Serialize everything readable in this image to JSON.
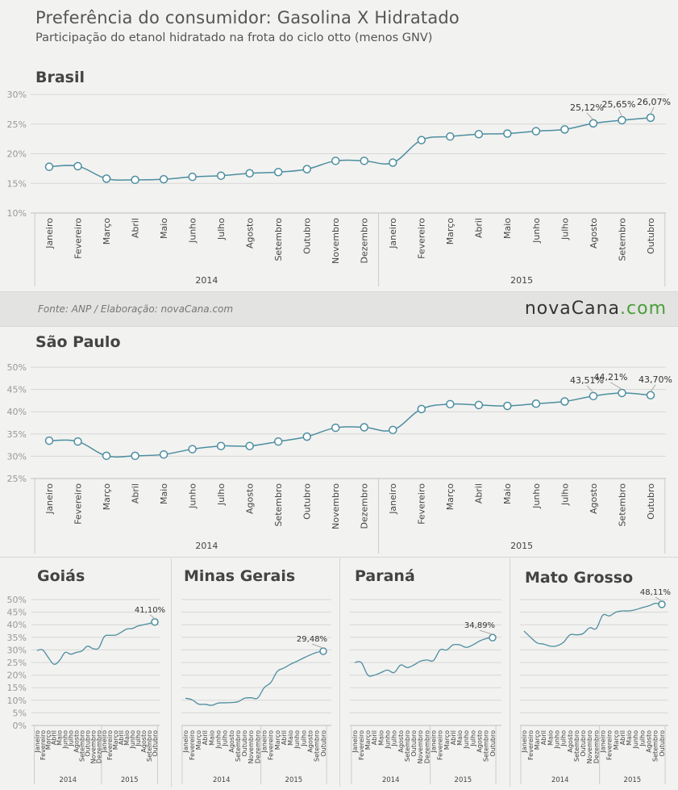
{
  "header": {
    "title": "Preferência do consumidor: Gasolina X Hidratado",
    "subtitle": "Participação do etanol hidratado na frota do ciclo otto (menos GNV)"
  },
  "footer": {
    "source": "Fonte:  ANP / Elaboração:  novaCana.com",
    "logo_part1": "novaCana",
    "logo_part2": ".com"
  },
  "colors": {
    "line": "#4d8ea0",
    "marker_fill": "#ffffff",
    "grid": "#d6d6d4",
    "logo_green": "#4a9e3b"
  },
  "chart_data": [
    {
      "id": "brasil",
      "type": "line",
      "title": "Brasil",
      "categories": [
        "Janeiro",
        "Fevereiro",
        "Março",
        "Abril",
        "Maio",
        "Junho",
        "Julho",
        "Agosto",
        "Setembro",
        "Outubro",
        "Novembro",
        "Dezembro",
        "Janeiro",
        "Fevereiro",
        "Março",
        "Abril",
        "Maio",
        "Junho",
        "Julho",
        "Agosto",
        "Setembro",
        "Outubro"
      ],
      "years": [
        {
          "label": "2014",
          "count": 12
        },
        {
          "label": "2015",
          "count": 10
        }
      ],
      "values": [
        17.8,
        17.9,
        15.8,
        15.6,
        15.7,
        16.1,
        16.3,
        16.7,
        16.9,
        17.4,
        18.8,
        18.8,
        18.5,
        22.3,
        22.9,
        23.3,
        23.4,
        23.8,
        24.1,
        25.12,
        25.65,
        26.07
      ],
      "data_labels": {
        "19": "25,12%",
        "20": "25,65%",
        "21": "26,07%"
      },
      "yticks": [
        "10%",
        "15%",
        "20%",
        "25%",
        "30%"
      ],
      "ylim": [
        10,
        30
      ],
      "markers": true,
      "grid": true
    },
    {
      "id": "sao-paulo",
      "type": "line",
      "title": "São Paulo",
      "categories": [
        "Janeiro",
        "Fevereiro",
        "Março",
        "Abril",
        "Maio",
        "Junho",
        "Julho",
        "Agosto",
        "Setembro",
        "Outubro",
        "Novembro",
        "Dezembro",
        "Janeiro",
        "Fevereiro",
        "Março",
        "Abril",
        "Maio",
        "Junho",
        "Julho",
        "Agosto",
        "Setembro",
        "Outubro"
      ],
      "years": [
        {
          "label": "2014",
          "count": 12
        },
        {
          "label": "2015",
          "count": 10
        }
      ],
      "values": [
        33.5,
        33.3,
        30.1,
        30.1,
        30.4,
        31.6,
        32.3,
        32.3,
        33.3,
        34.4,
        36.4,
        36.5,
        35.9,
        40.6,
        41.7,
        41.5,
        41.3,
        41.8,
        42.3,
        43.51,
        44.21,
        43.7
      ],
      "data_labels": {
        "19": "43,51%",
        "20": "44,21%",
        "21": "43,70%"
      },
      "yticks": [
        "25%",
        "30%",
        "35%",
        "40%",
        "45%",
        "50%"
      ],
      "ylim": [
        25,
        50
      ],
      "markers": true,
      "grid": true
    },
    {
      "id": "goias",
      "type": "line",
      "title": "Goiás",
      "categories": [
        "Janeiro",
        "Fevereiro",
        "Março",
        "Abril",
        "Maio",
        "Junho",
        "Julho",
        "Agosto",
        "Setembro",
        "Outubro",
        "Novembro",
        "Dezembro",
        "Janeiro",
        "Fevereiro",
        "Março",
        "Abril",
        "Maio",
        "Junho",
        "Julho",
        "Agosto",
        "Setembro",
        "Outubro"
      ],
      "years": [
        {
          "label": "2014",
          "count": 12
        },
        {
          "label": "2015",
          "count": 10
        }
      ],
      "values": [
        29.8,
        30.0,
        27.0,
        24.3,
        25.8,
        29.0,
        28.3,
        29.0,
        29.6,
        31.5,
        30.5,
        30.8,
        35.3,
        35.8,
        35.9,
        37.0,
        38.3,
        38.5,
        39.5,
        40.0,
        40.5,
        41.1
      ],
      "data_labels": {
        "21": "41,10%"
      },
      "yticks": [
        "0%",
        "5%",
        "10%",
        "15%",
        "20%",
        "25%",
        "30%",
        "35%",
        "40%",
        "45%",
        "50%"
      ],
      "ylim": [
        0,
        50
      ],
      "markers": "last",
      "grid": true
    },
    {
      "id": "minas-gerais",
      "type": "line",
      "title": "Minas Gerais",
      "categories": [
        "Janeiro",
        "Fevereiro",
        "Março",
        "Abril",
        "Maio",
        "Junho",
        "Julho",
        "Agosto",
        "Setembro",
        "Outubro",
        "Novembro",
        "Dezembro",
        "Janeiro",
        "Fevereiro",
        "Março",
        "Abril",
        "Maio",
        "Junho",
        "Julho",
        "Agosto",
        "Setembro",
        "Outubro"
      ],
      "years": [
        {
          "label": "2014",
          "count": 12
        },
        {
          "label": "2015",
          "count": 10
        }
      ],
      "values": [
        10.8,
        10.2,
        8.5,
        8.4,
        8.0,
        8.9,
        9.0,
        9.1,
        9.4,
        10.8,
        11.0,
        10.9,
        15.0,
        17.0,
        21.5,
        22.8,
        24.3,
        25.5,
        26.8,
        28.0,
        29.0,
        29.48
      ],
      "data_labels": {
        "21": "29,48%"
      },
      "yticks": [],
      "ylim": [
        0,
        50
      ],
      "markers": "last",
      "grid": true
    },
    {
      "id": "parana",
      "type": "line",
      "title": "Paraná",
      "categories": [
        "Janeiro",
        "Fevereiro",
        "Março",
        "Abril",
        "Maio",
        "Junho",
        "Julho",
        "Agosto",
        "Setembro",
        "Outubro",
        "Novembro",
        "Dezembro",
        "Janeiro",
        "Fevereiro",
        "Março",
        "Abril",
        "Maio",
        "Junho",
        "Julho",
        "Agosto",
        "Setembro",
        "Outubro"
      ],
      "years": [
        {
          "label": "2014",
          "count": 12
        },
        {
          "label": "2015",
          "count": 10
        }
      ],
      "values": [
        25.0,
        25.0,
        20.0,
        20.0,
        21.0,
        22.0,
        21.0,
        24.0,
        23.0,
        24.0,
        25.5,
        26.0,
        25.8,
        30.0,
        30.0,
        32.0,
        32.0,
        31.0,
        32.0,
        33.5,
        34.5,
        34.89
      ],
      "data_labels": {
        "21": "34,89%"
      },
      "yticks": [],
      "ylim": [
        0,
        50
      ],
      "markers": "last",
      "grid": true
    },
    {
      "id": "mato-grosso",
      "type": "line",
      "title": "Mato Grosso",
      "categories": [
        "Janeiro",
        "Fevereiro",
        "Março",
        "Abril",
        "Maio",
        "Junho",
        "Julho",
        "Agosto",
        "Setembro",
        "Outubro",
        "Novembro",
        "Dezembro",
        "Janeiro",
        "Fevereiro",
        "Março",
        "Abril",
        "Maio",
        "Junho",
        "Julho",
        "Agosto",
        "Setembro",
        "Outubro"
      ],
      "years": [
        {
          "label": "2014",
          "count": 12
        },
        {
          "label": "2015",
          "count": 10
        }
      ],
      "values": [
        37.5,
        35.0,
        32.8,
        32.3,
        31.5,
        31.6,
        33.0,
        36.0,
        36.0,
        36.5,
        38.8,
        38.5,
        43.8,
        43.5,
        45.0,
        45.5,
        45.5,
        46.0,
        46.8,
        47.5,
        48.5,
        48.11
      ],
      "data_labels": {
        "21": "48,11%"
      },
      "yticks": [],
      "ylim": [
        0,
        50
      ],
      "markers": "last",
      "grid": true
    }
  ]
}
